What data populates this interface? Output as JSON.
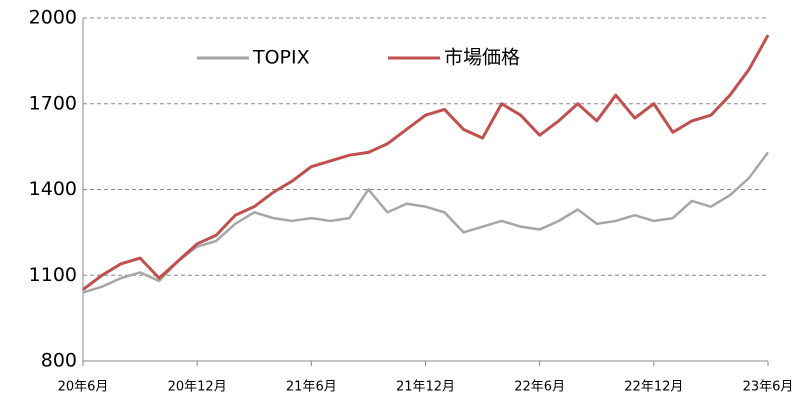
{
  "chart_data": {
    "type": "line",
    "categories": [
      "20年6月",
      null,
      null,
      null,
      null,
      null,
      "20年12月",
      null,
      null,
      null,
      null,
      null,
      "21年6月",
      null,
      null,
      null,
      null,
      null,
      "21年12月",
      null,
      null,
      null,
      null,
      null,
      "22年6月",
      null,
      null,
      null,
      null,
      null,
      "22年12月",
      null,
      null,
      null,
      null,
      null,
      "23年6月"
    ],
    "series": [
      {
        "name": "TOPIX",
        "color": "#a6a6a6",
        "values": [
          1040,
          1060,
          1090,
          1110,
          1080,
          1150,
          1200,
          1220,
          1280,
          1320,
          1300,
          1290,
          1300,
          1290,
          1300,
          1400,
          1320,
          1350,
          1340,
          1320,
          1250,
          1270,
          1290,
          1270,
          1260,
          1290,
          1330,
          1280,
          1290,
          1310,
          1290,
          1300,
          1360,
          1340,
          1380,
          1440,
          1530
        ]
      },
      {
        "name": "市場価格",
        "color": "#c0504d",
        "values": [
          1050,
          1100,
          1140,
          1160,
          1090,
          1150,
          1210,
          1240,
          1310,
          1340,
          1390,
          1430,
          1480,
          1500,
          1520,
          1530,
          1560,
          1610,
          1660,
          1680,
          1610,
          1580,
          1700,
          1660,
          1590,
          1640,
          1700,
          1640,
          1730,
          1650,
          1700,
          1600,
          1640,
          1660,
          1730,
          1820,
          1940
        ]
      }
    ],
    "ylim": [
      800,
      2000
    ],
    "yticks": [
      800,
      1100,
      1400,
      1700,
      2000
    ],
    "grid": true
  }
}
